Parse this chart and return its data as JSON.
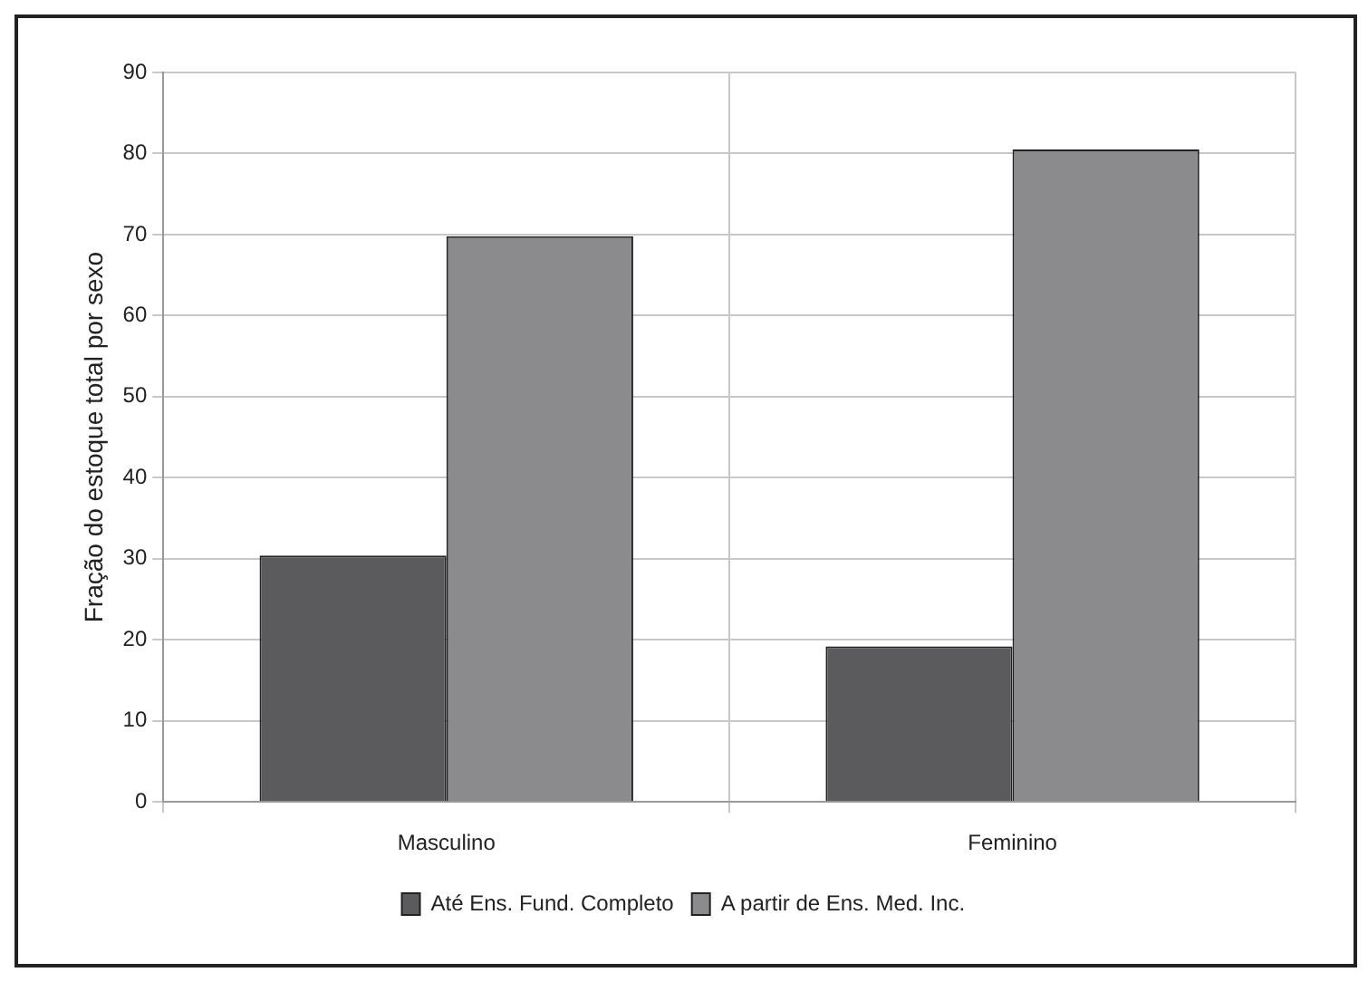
{
  "chart_data": {
    "type": "bar",
    "ylabel": "Fração do estoque total por sexo",
    "categories": [
      "Masculino",
      "Feminino"
    ],
    "series": [
      {
        "name": "Até Ens. Fund. Completo",
        "color": "#5b5b5d",
        "values": [
          30.4,
          19.2
        ]
      },
      {
        "name": "A partir de Ens. Med. Inc.",
        "color": "#8b8b8e",
        "values": [
          69.8,
          80.5
        ]
      }
    ],
    "ylim": [
      0,
      90
    ],
    "yticks": [
      0,
      10,
      20,
      30,
      40,
      50,
      60,
      70,
      80,
      90
    ],
    "grid": true,
    "legend": "bottom"
  }
}
